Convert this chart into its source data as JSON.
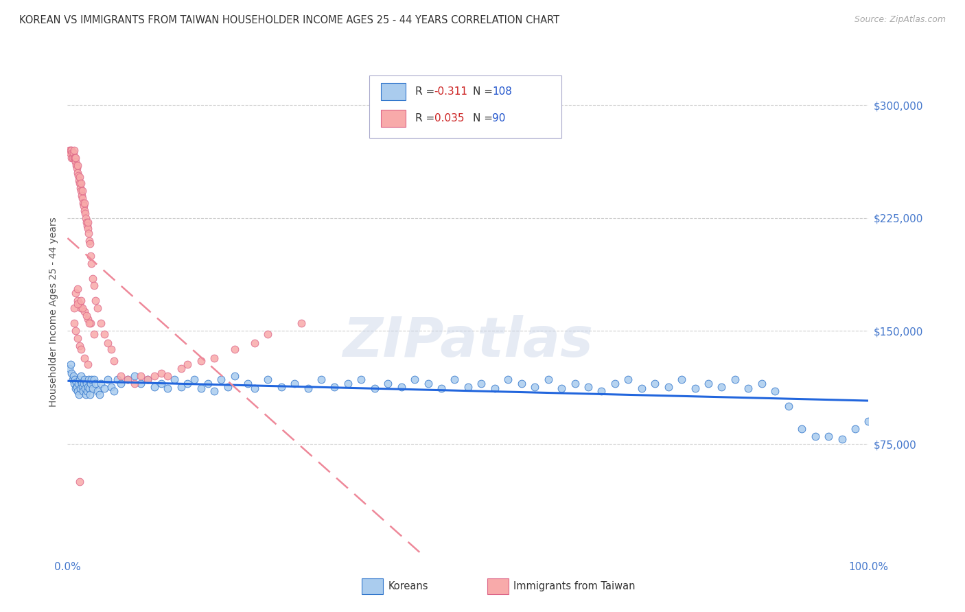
{
  "title": "KOREAN VS IMMIGRANTS FROM TAIWAN HOUSEHOLDER INCOME AGES 25 - 44 YEARS CORRELATION CHART",
  "source": "Source: ZipAtlas.com",
  "ylabel": "Householder Income Ages 25 - 44 years",
  "ylim": [
    0,
    325000
  ],
  "yticks": [
    75000,
    150000,
    225000,
    300000
  ],
  "ytick_labels": [
    "$75,000",
    "$150,000",
    "$225,000",
    "$300,000"
  ],
  "xtick_labels": [
    "0.0%",
    "100.0%"
  ],
  "watermark_text": "ZIPatlas",
  "blue_scatter_color": "#aaccee",
  "blue_edge_color": "#3377cc",
  "pink_scatter_color": "#f8aaaa",
  "pink_edge_color": "#dd6688",
  "blue_line_color": "#2266dd",
  "pink_line_color": "#ee8899",
  "tick_label_color": "#4477cc",
  "r1_val": "-0.311",
  "n1_val": "108",
  "r2_val": "0.035",
  "n2_val": "90",
  "koreans_x": [
    0.3,
    0.5,
    0.6,
    0.8,
    0.9,
    1.0,
    1.1,
    1.2,
    1.3,
    1.4,
    1.5,
    1.6,
    1.7,
    1.8,
    1.9,
    2.0,
    2.1,
    2.2,
    2.3,
    2.4,
    2.5,
    2.6,
    2.7,
    2.8,
    2.9,
    3.0,
    3.1,
    3.2,
    3.3,
    3.5,
    3.6,
    3.8,
    4.0,
    4.2,
    4.5,
    4.8,
    5.0,
    5.5,
    6.0,
    6.5,
    7.0,
    7.5,
    8.0,
    9.0,
    10.0,
    11.0,
    12.0,
    13.0,
    14.0,
    15.0,
    16.0,
    17.0,
    18.0,
    19.0,
    20.0,
    21.0,
    22.0,
    23.0,
    24.0,
    25.0,
    27.0,
    28.0,
    30.0,
    32.0,
    34.0,
    36.0,
    38.0,
    40.0,
    42.0,
    44.0,
    46.0,
    48.0,
    50.0,
    52.0,
    54.0,
    56.0,
    58.0,
    60.0,
    62.0,
    64.0,
    66.0,
    68.0,
    70.0,
    72.0,
    74.0,
    76.0,
    78.0,
    80.0,
    82.0,
    84.0,
    86.0,
    88.0,
    90.0,
    92.0,
    94.0,
    96.0,
    98.0,
    100.0,
    102.0,
    104.0,
    106.0,
    108.0,
    110.0,
    112.0,
    114.0,
    116.0,
    118.0,
    120.0
  ],
  "koreans_y": [
    125000,
    128000,
    122000,
    118000,
    120000,
    115000,
    118000,
    112000,
    116000,
    113000,
    110000,
    115000,
    108000,
    118000,
    112000,
    120000,
    115000,
    113000,
    110000,
    115000,
    118000,
    112000,
    108000,
    115000,
    110000,
    113000,
    118000,
    112000,
    108000,
    115000,
    118000,
    112000,
    118000,
    115000,
    110000,
    108000,
    115000,
    112000,
    118000,
    113000,
    110000,
    118000,
    115000,
    118000,
    120000,
    115000,
    118000,
    113000,
    115000,
    112000,
    118000,
    113000,
    115000,
    118000,
    112000,
    115000,
    110000,
    118000,
    113000,
    120000,
    115000,
    112000,
    118000,
    113000,
    115000,
    112000,
    118000,
    113000,
    115000,
    118000,
    112000,
    115000,
    113000,
    118000,
    115000,
    112000,
    118000,
    113000,
    115000,
    112000,
    118000,
    115000,
    113000,
    118000,
    112000,
    115000,
    113000,
    110000,
    115000,
    118000,
    112000,
    115000,
    113000,
    118000,
    112000,
    115000,
    113000,
    118000,
    112000,
    115000,
    110000,
    100000,
    85000,
    80000,
    80000,
    78000,
    85000,
    90000
  ],
  "taiwan_x": [
    0.3,
    0.4,
    0.5,
    0.6,
    0.6,
    0.7,
    0.8,
    0.9,
    1.0,
    1.0,
    1.1,
    1.2,
    1.2,
    1.3,
    1.4,
    1.5,
    1.5,
    1.6,
    1.7,
    1.8,
    1.8,
    1.9,
    2.0,
    2.0,
    2.1,
    2.2,
    2.2,
    2.3,
    2.4,
    2.5,
    2.5,
    2.6,
    2.7,
    2.8,
    2.9,
    3.0,
    3.0,
    3.1,
    3.2,
    3.3,
    3.5,
    3.6,
    3.8,
    4.0,
    4.2,
    4.5,
    5.0,
    5.5,
    6.0,
    6.5,
    7.0,
    8.0,
    9.0,
    10.0,
    11.0,
    12.0,
    13.0,
    14.0,
    15.0,
    17.0,
    18.0,
    20.0,
    22.0,
    25.0,
    28.0,
    30.0,
    35.0,
    2.0,
    2.5,
    3.0,
    3.5,
    4.0,
    1.5,
    1.8,
    2.2,
    2.8,
    3.2,
    1.0,
    1.2,
    1.5,
    1.8,
    2.0,
    2.5,
    3.0,
    1.0,
    1.5,
    2.0,
    1.2,
    1.5,
    1.8
  ],
  "taiwan_y": [
    270000,
    268000,
    270000,
    265000,
    270000,
    268000,
    265000,
    268000,
    265000,
    270000,
    265000,
    262000,
    265000,
    260000,
    258000,
    255000,
    260000,
    253000,
    250000,
    248000,
    252000,
    245000,
    243000,
    248000,
    240000,
    238000,
    243000,
    235000,
    233000,
    230000,
    235000,
    228000,
    225000,
    222000,
    220000,
    218000,
    222000,
    215000,
    210000,
    208000,
    200000,
    195000,
    185000,
    180000,
    170000,
    165000,
    155000,
    148000,
    142000,
    138000,
    130000,
    120000,
    118000,
    115000,
    120000,
    118000,
    120000,
    122000,
    120000,
    125000,
    128000,
    130000,
    132000,
    138000,
    142000,
    148000,
    155000,
    165000,
    163000,
    158000,
    155000,
    148000,
    170000,
    168000,
    165000,
    160000,
    155000,
    155000,
    150000,
    145000,
    140000,
    138000,
    132000,
    128000,
    165000,
    168000,
    170000,
    175000,
    178000,
    50000
  ]
}
